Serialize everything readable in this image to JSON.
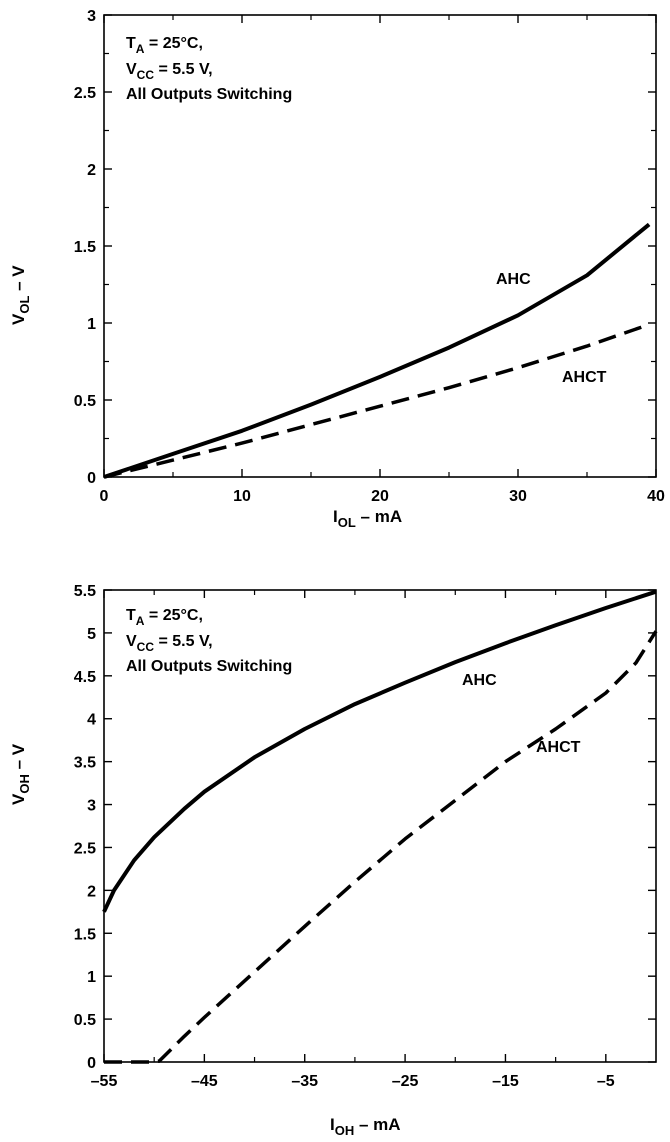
{
  "colors": {
    "ink": "#000000",
    "background": "#ffffff"
  },
  "chart_data": [
    {
      "type": "line",
      "title": "",
      "xlabel": "I",
      "xlabel_sub": "OL",
      "xlabel_rest": " – mA",
      "ylabel": "V",
      "ylabel_sub": "OL",
      "ylabel_rest": " – V",
      "xlim": [
        0,
        40
      ],
      "ylim": [
        0,
        3
      ],
      "x_ticks": [
        0,
        10,
        20,
        30,
        40
      ],
      "x_tick_labels": [
        "0",
        "10",
        "20",
        "30",
        "40"
      ],
      "y_ticks": [
        0,
        0.5,
        1,
        1.5,
        2,
        2.5,
        3
      ],
      "y_tick_labels": [
        "0",
        "0.5",
        "1",
        "1.5",
        "2",
        "2.5",
        "3"
      ],
      "grid": false,
      "conditions": {
        "line1_main": "T",
        "line1_sub": "A",
        "line1_rest": " = 25°C,",
        "line2_main": "V",
        "line2_sub": "CC",
        "line2_rest": " = 5.5 V,",
        "line3": "All Outputs Switching"
      },
      "series": [
        {
          "name": "AHC",
          "style": "solid",
          "x": [
            0,
            5,
            10,
            15,
            20,
            25,
            30,
            35,
            39.5
          ],
          "y": [
            0,
            0.15,
            0.3,
            0.47,
            0.65,
            0.84,
            1.05,
            1.31,
            1.64
          ]
        },
        {
          "name": "AHCT",
          "style": "dashed",
          "x": [
            0,
            5,
            10,
            15,
            20,
            25,
            30,
            35,
            39.5
          ],
          "y": [
            0,
            0.11,
            0.22,
            0.34,
            0.46,
            0.58,
            0.71,
            0.85,
            0.99
          ]
        }
      ]
    },
    {
      "type": "line",
      "title": "",
      "xlabel": "I",
      "xlabel_sub": "OH",
      "xlabel_rest": " – mA",
      "ylabel": "V",
      "ylabel_sub": "OH",
      "ylabel_rest": " – V",
      "xlim": [
        -55,
        0
      ],
      "ylim": [
        0,
        5.5
      ],
      "x_ticks": [
        -55,
        -45,
        -35,
        -25,
        -15,
        -5
      ],
      "x_tick_labels": [
        "–55",
        "–45",
        "–35",
        "–25",
        "–15",
        "–5"
      ],
      "y_ticks": [
        0,
        0.5,
        1,
        1.5,
        2,
        2.5,
        3,
        3.5,
        4,
        4.5,
        5,
        5.5
      ],
      "y_tick_labels": [
        "0",
        "0.5",
        "1",
        "1.5",
        "2",
        "2.5",
        "3",
        "3.5",
        "4",
        "4.5",
        "5",
        "5.5"
      ],
      "grid": false,
      "conditions": {
        "line1_main": "T",
        "line1_sub": "A",
        "line1_rest": " = 25°C,",
        "line2_main": "V",
        "line2_sub": "CC",
        "line2_rest": " = 5.5 V,",
        "line3": "All Outputs Switching"
      },
      "series": [
        {
          "name": "AHC",
          "style": "solid",
          "x": [
            -55,
            -54,
            -52,
            -50,
            -47,
            -45,
            -40,
            -35,
            -30,
            -25,
            -20,
            -15,
            -10,
            -5,
            0
          ],
          "y": [
            1.75,
            2.0,
            2.35,
            2.62,
            2.95,
            3.15,
            3.55,
            3.88,
            4.17,
            4.42,
            4.66,
            4.88,
            5.09,
            5.29,
            5.48
          ]
        },
        {
          "name": "AHCT",
          "style": "dashed",
          "x": [
            -55,
            -52,
            -50,
            -49.5,
            -47,
            -45,
            -40,
            -35,
            -30,
            -25,
            -20,
            -15,
            -10,
            -5,
            -2,
            0
          ],
          "y": [
            0,
            0,
            0,
            0.01,
            0.3,
            0.52,
            1.05,
            1.58,
            2.1,
            2.6,
            3.05,
            3.5,
            3.88,
            4.3,
            4.65,
            5.02
          ]
        }
      ]
    }
  ]
}
